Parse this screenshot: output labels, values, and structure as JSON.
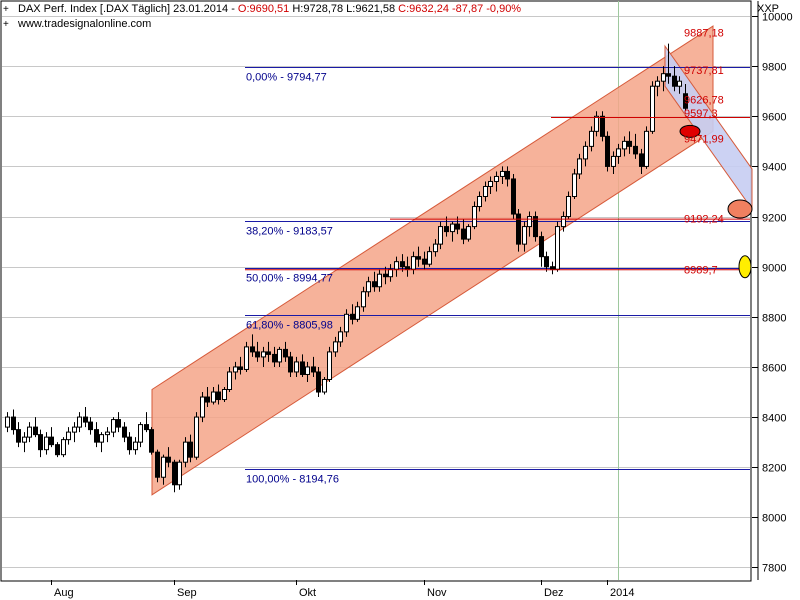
{
  "header": {
    "title_prefix": "DAX Perf. Index [.DAX  Täglich] 23.01.2014 - ",
    "open": "O:9690,51",
    "hl": " H:9728,78 L:9621,58 ",
    "close": "C:9632,24 -87,87 -0,90%",
    "source": "www.tradesignalonline.com",
    "symbol": "XXP"
  },
  "chart_data": {
    "type": "candlestick",
    "title": "DAX Perf. Index [.DAX  Täglich] 23.01.2014",
    "y_axis_labels": [
      10000,
      9800,
      9600,
      9400,
      9200,
      9000,
      8800,
      8600,
      8400,
      8200,
      8000,
      7800
    ],
    "ylim": [
      7750,
      10060
    ],
    "x_axis_labels": [
      "Aug",
      "Sep",
      "Okt",
      "Nov",
      "Dez",
      "2014"
    ],
    "grid": true,
    "fibonacci": [
      {
        "label": "0,00% - 9794,77",
        "value": 9794.77
      },
      {
        "label": "38,20% - 9183,57",
        "value": 9183.57
      },
      {
        "label": "50,00% - 8994,77",
        "value": 8994.77
      },
      {
        "label": "61,80% - 8805,98",
        "value": 8805.98
      },
      {
        "label": "100,00% - 8194,76",
        "value": 8194.76
      }
    ],
    "value_labels": [
      {
        "text": "9887,18",
        "value": 9887.18
      },
      {
        "text": "9737,81",
        "value": 9737.81
      },
      {
        "text": "9626,78",
        "value": 9626.78
      },
      {
        "text": "9597,3",
        "value": 9597.3
      },
      {
        "text": "9471,99",
        "value": 9471.99
      },
      {
        "text": "9192,24",
        "value": 9192.24
      },
      {
        "text": "8989,7",
        "value": 8989.7
      }
    ],
    "series": [
      {
        "values": [
          [
            8360,
            8420,
            8340,
            8400
          ],
          [
            8400,
            8430,
            8330,
            8350
          ],
          [
            8350,
            8380,
            8280,
            8300
          ],
          [
            8300,
            8340,
            8260,
            8320
          ],
          [
            8320,
            8380,
            8300,
            8360
          ],
          [
            8360,
            8400,
            8320,
            8330
          ],
          [
            8330,
            8350,
            8240,
            8270
          ],
          [
            8270,
            8340,
            8250,
            8320
          ],
          [
            8320,
            8360,
            8280,
            8290
          ],
          [
            8290,
            8300,
            8240,
            8250
          ],
          [
            8250,
            8320,
            8240,
            8310
          ],
          [
            8310,
            8360,
            8290,
            8340
          ],
          [
            8340,
            8380,
            8300,
            8360
          ],
          [
            8360,
            8420,
            8340,
            8400
          ],
          [
            8400,
            8440,
            8360,
            8380
          ],
          [
            8380,
            8400,
            8330,
            8350
          ],
          [
            8350,
            8380,
            8280,
            8300
          ],
          [
            8300,
            8340,
            8260,
            8330
          ],
          [
            8330,
            8360,
            8300,
            8340
          ],
          [
            8340,
            8400,
            8320,
            8390
          ],
          [
            8390,
            8420,
            8340,
            8360
          ],
          [
            8360,
            8380,
            8300,
            8320
          ],
          [
            8320,
            8340,
            8250,
            8270
          ],
          [
            8270,
            8320,
            8250,
            8300
          ],
          [
            8300,
            8380,
            8280,
            8370
          ],
          [
            8370,
            8420,
            8340,
            8350
          ],
          [
            8350,
            8360,
            8250,
            8260
          ],
          [
            8260,
            8270,
            8140,
            8160
          ],
          [
            8160,
            8250,
            8130,
            8240
          ],
          [
            8240,
            8280,
            8200,
            8220
          ],
          [
            8220,
            8230,
            8100,
            8130
          ],
          [
            8130,
            8230,
            8110,
            8220
          ],
          [
            8220,
            8320,
            8200,
            8300
          ],
          [
            8300,
            8330,
            8220,
            8240
          ],
          [
            8240,
            8420,
            8230,
            8400
          ],
          [
            8400,
            8500,
            8380,
            8480
          ],
          [
            8480,
            8520,
            8440,
            8460
          ],
          [
            8460,
            8520,
            8450,
            8500
          ],
          [
            8500,
            8530,
            8450,
            8470
          ],
          [
            8470,
            8520,
            8460,
            8510
          ],
          [
            8510,
            8600,
            8500,
            8580
          ],
          [
            8580,
            8620,
            8550,
            8600
          ],
          [
            8600,
            8640,
            8570,
            8590
          ],
          [
            8590,
            8700,
            8580,
            8680
          ],
          [
            8680,
            8730,
            8640,
            8660
          ],
          [
            8660,
            8700,
            8620,
            8640
          ],
          [
            8640,
            8680,
            8600,
            8660
          ],
          [
            8660,
            8700,
            8620,
            8650
          ],
          [
            8650,
            8680,
            8600,
            8620
          ],
          [
            8620,
            8680,
            8600,
            8670
          ],
          [
            8670,
            8700,
            8620,
            8640
          ],
          [
            8640,
            8660,
            8560,
            8580
          ],
          [
            8580,
            8640,
            8560,
            8620
          ],
          [
            8620,
            8650,
            8560,
            8570
          ],
          [
            8570,
            8620,
            8540,
            8600
          ],
          [
            8600,
            8640,
            8560,
            8580
          ],
          [
            8580,
            8600,
            8480,
            8500
          ],
          [
            8500,
            8560,
            8490,
            8550
          ],
          [
            8550,
            8680,
            8540,
            8660
          ],
          [
            8660,
            8720,
            8640,
            8700
          ],
          [
            8700,
            8760,
            8680,
            8740
          ],
          [
            8740,
            8830,
            8720,
            8810
          ],
          [
            8810,
            8850,
            8770,
            8790
          ],
          [
            8790,
            8860,
            8780,
            8840
          ],
          [
            8840,
            8920,
            8820,
            8900
          ],
          [
            8900,
            8960,
            8880,
            8940
          ],
          [
            8940,
            8980,
            8900,
            8920
          ],
          [
            8920,
            8990,
            8900,
            8970
          ],
          [
            8970,
            9000,
            8930,
            8960
          ],
          [
            8960,
            9010,
            8940,
            8990
          ],
          [
            8990,
            9040,
            8960,
            9020
          ],
          [
            9020,
            9050,
            8980,
            9000
          ],
          [
            9000,
            9040,
            8960,
            8990
          ],
          [
            8990,
            9060,
            8970,
            9040
          ],
          [
            9040,
            9080,
            9000,
            9030
          ],
          [
            9030,
            9060,
            8990,
            9010
          ],
          [
            9010,
            9080,
            9000,
            9060
          ],
          [
            9060,
            9110,
            9040,
            9090
          ],
          [
            9090,
            9180,
            9070,
            9160
          ],
          [
            9160,
            9200,
            9120,
            9140
          ],
          [
            9140,
            9180,
            9100,
            9170
          ],
          [
            9170,
            9200,
            9130,
            9150
          ],
          [
            9150,
            9190,
            9090,
            9110
          ],
          [
            9110,
            9170,
            9100,
            9160
          ],
          [
            9160,
            9260,
            9150,
            9240
          ],
          [
            9240,
            9300,
            9220,
            9280
          ],
          [
            9280,
            9340,
            9260,
            9320
          ],
          [
            9320,
            9360,
            9290,
            9340
          ],
          [
            9340,
            9380,
            9300,
            9360
          ],
          [
            9360,
            9400,
            9330,
            9380
          ],
          [
            9380,
            9400,
            9320,
            9350
          ],
          [
            9350,
            9370,
            9190,
            9210
          ],
          [
            9210,
            9230,
            9060,
            9090
          ],
          [
            9090,
            9180,
            9060,
            9160
          ],
          [
            9160,
            9220,
            9120,
            9200
          ],
          [
            9200,
            9220,
            9100,
            9120
          ],
          [
            9120,
            9140,
            9000,
            9040
          ],
          [
            9040,
            9060,
            8980,
            9000
          ],
          [
            9000,
            9020,
            8970,
            8990
          ],
          [
            8990,
            9180,
            8980,
            9160
          ],
          [
            9160,
            9220,
            9140,
            9200
          ],
          [
            9200,
            9300,
            9190,
            9280
          ],
          [
            9280,
            9390,
            9270,
            9370
          ],
          [
            9370,
            9450,
            9350,
            9430
          ],
          [
            9430,
            9500,
            9400,
            9480
          ],
          [
            9480,
            9560,
            9460,
            9540
          ],
          [
            9540,
            9620,
            9520,
            9600
          ],
          [
            9600,
            9620,
            9500,
            9520
          ],
          [
            9520,
            9540,
            9380,
            9400
          ],
          [
            9400,
            9460,
            9370,
            9440
          ],
          [
            9440,
            9490,
            9410,
            9470
          ],
          [
            9470,
            9520,
            9440,
            9500
          ],
          [
            9500,
            9540,
            9450,
            9480
          ],
          [
            9480,
            9530,
            9430,
            9450
          ],
          [
            9450,
            9470,
            9370,
            9400
          ],
          [
            9400,
            9560,
            9390,
            9540
          ],
          [
            9540,
            9740,
            9530,
            9720
          ],
          [
            9720,
            9760,
            9680,
            9740
          ],
          [
            9740,
            9800,
            9700,
            9770
          ],
          [
            9770,
            9890,
            9730,
            9760
          ],
          [
            9760,
            9800,
            9700,
            9720
          ],
          [
            9720,
            9760,
            9690,
            9740
          ],
          [
            9690,
            9729,
            9622,
            9632
          ]
        ]
      }
    ]
  }
}
